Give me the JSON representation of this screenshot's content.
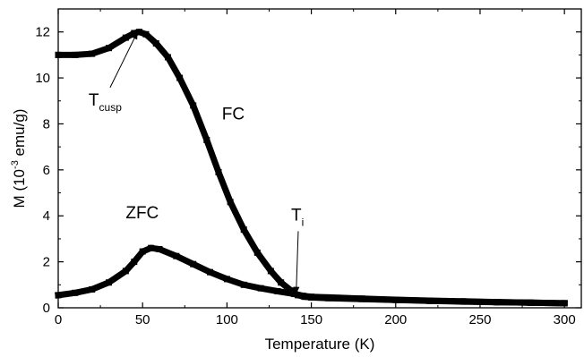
{
  "chart_data": {
    "type": "line",
    "xlabel": "Temperature (K)",
    "ylabel": {
      "base": "M (10",
      "sup": "-3",
      "unit": " emu/g)"
    },
    "xlim": [
      0,
      310
    ],
    "ylim": [
      0,
      13
    ],
    "xticks": [
      0,
      50,
      100,
      150,
      200,
      250,
      300
    ],
    "yticks": [
      0,
      2,
      4,
      6,
      8,
      10,
      12
    ],
    "grid": false,
    "series": [
      {
        "name": "FC",
        "color": "#000000",
        "x": [
          0,
          10,
          20,
          30,
          40,
          45,
          48,
          52,
          58,
          65,
          72,
          80,
          88,
          95,
          102,
          110,
          118,
          126,
          132,
          138,
          142,
          146,
          150,
          160,
          180,
          200,
          220,
          240,
          260,
          280,
          300
        ],
        "y": [
          11.0,
          11.0,
          11.05,
          11.3,
          11.75,
          11.95,
          12.0,
          11.9,
          11.5,
          10.9,
          10.0,
          8.8,
          7.3,
          5.9,
          4.6,
          3.4,
          2.4,
          1.6,
          1.1,
          0.75,
          0.55,
          0.48,
          0.45,
          0.42,
          0.38,
          0.34,
          0.3,
          0.27,
          0.24,
          0.22,
          0.2
        ]
      },
      {
        "name": "ZFC",
        "color": "#000000",
        "x": [
          0,
          10,
          20,
          30,
          40,
          45,
          50,
          55,
          60,
          70,
          80,
          90,
          100,
          110,
          120,
          130,
          140,
          145,
          150,
          160,
          180,
          200,
          220,
          240,
          260,
          280,
          300
        ],
        "y": [
          0.55,
          0.65,
          0.8,
          1.1,
          1.6,
          2.0,
          2.45,
          2.6,
          2.55,
          2.25,
          1.9,
          1.55,
          1.25,
          1.0,
          0.85,
          0.72,
          0.6,
          0.52,
          0.48,
          0.45,
          0.4,
          0.35,
          0.31,
          0.28,
          0.25,
          0.22,
          0.2
        ]
      }
    ],
    "annotations": [
      {
        "text": "FC",
        "x": 97,
        "y": 8.2
      },
      {
        "text": "ZFC",
        "x": 40,
        "y": 3.9
      },
      {
        "text": "T",
        "sub": "cusp",
        "x": 18,
        "y": 8.8,
        "arrow_to": [
          47,
          12.0
        ]
      },
      {
        "text": "T",
        "sub": "i",
        "x": 138,
        "y": 3.8,
        "arrow_to": [
          141,
          0.6
        ]
      }
    ]
  }
}
